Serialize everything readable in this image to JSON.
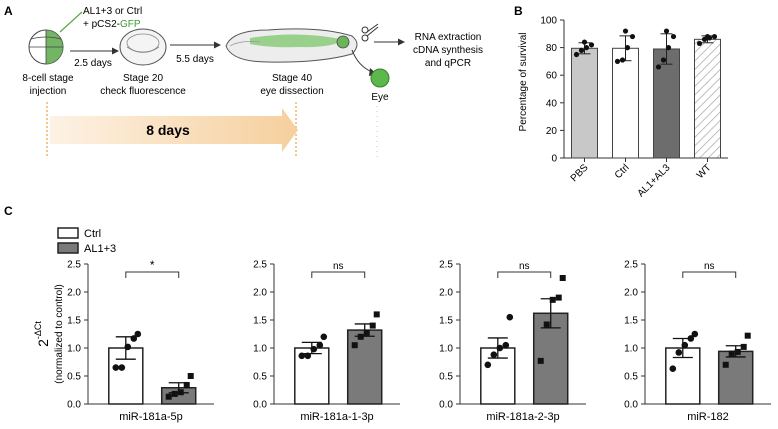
{
  "panel_a": {
    "letter": "A",
    "injection_line1": "AL1+3 or Ctrl",
    "injection_line2_prefix": "+ pCS2-",
    "injection_line2_gfp": "GFP",
    "step1_line1": "8-cell stage",
    "step1_line2": "injection",
    "arrow1_label": "2.5 days",
    "step2_line1": "Stage 20",
    "step2_line2": "check fluorescence",
    "arrow2_label": "5.5 days",
    "step3_line1": "Stage 40",
    "step3_line2": "eye dissection",
    "eye_label": "Eye",
    "final_line1": "RNA extraction",
    "final_line2": "cDNA synthesis",
    "final_line3": "and qPCR",
    "timeline_label": "8 days",
    "colors": {
      "gfp_green": "#5aa84a",
      "timeline_fill": "#f8d9b4",
      "timeline_line": "#e8a040"
    }
  },
  "chart_data": [
    {
      "panel": "B",
      "type": "bar",
      "ylabel": "Percentage of survival",
      "ylim": [
        0,
        100
      ],
      "yticks": [
        0,
        20,
        40,
        60,
        80,
        100
      ],
      "categories": [
        "PBS",
        "Ctrl",
        "AL1+AL3",
        "WT"
      ],
      "values": [
        79.5,
        79.5,
        79,
        86
      ],
      "errors": [
        4,
        9,
        11,
        2.5
      ],
      "points": [
        [
          75,
          78,
          80,
          82,
          84
        ],
        [
          70,
          71,
          80,
          88,
          92
        ],
        [
          66,
          71,
          80,
          88,
          92
        ],
        [
          83,
          86,
          87,
          88,
          88
        ]
      ],
      "fills": [
        "#c8c8c8",
        "#ffffff",
        "#6d6d6d",
        "hatch"
      ]
    },
    {
      "panel": "C",
      "type": "bar",
      "legend": [
        "Ctrl",
        "AL1+3"
      ],
      "ylabel_main": "2",
      "ylabel_sup": "-ΔCt",
      "ylabel_sub": "(normalized to control)",
      "ylim": [
        0,
        2.5
      ],
      "yticks": [
        "0.0",
        "0.5",
        "1.0",
        "1.5",
        "2.0",
        "2.5"
      ],
      "series_colors": [
        "#ffffff",
        "#7a7a7a"
      ],
      "subplots": [
        {
          "title": "miR-181a-5p",
          "sig": "*",
          "ctrl": 1.0,
          "ctrl_err": 0.2,
          "al": 0.29,
          "al_err": 0.09,
          "ctrl_pts": [
            0.65,
            0.65,
            1.02,
            1.17,
            1.25
          ],
          "al_pts": [
            0.13,
            0.18,
            0.21,
            0.34,
            0.5
          ]
        },
        {
          "title": "miR-181a-1-3p",
          "sig": "ns",
          "ctrl": 1.0,
          "ctrl_err": 0.1,
          "al": 1.32,
          "al_err": 0.11,
          "ctrl_pts": [
            0.86,
            0.86,
            0.98,
            1.05,
            1.2
          ],
          "al_pts": [
            1.05,
            1.2,
            1.27,
            1.4,
            1.6
          ]
        },
        {
          "title": "miR-181a-2-3p",
          "sig": "ns",
          "ctrl": 1.0,
          "ctrl_err": 0.18,
          "al": 1.62,
          "al_err": 0.26,
          "ctrl_pts": [
            0.7,
            0.88,
            1.0,
            1.05,
            1.55
          ],
          "al_pts": [
            0.77,
            1.42,
            1.86,
            1.9,
            2.25
          ]
        },
        {
          "title": "miR-182",
          "sig": "ns",
          "ctrl": 1.0,
          "ctrl_err": 0.17,
          "al": 0.94,
          "al_err": 0.1,
          "ctrl_pts": [
            0.63,
            0.92,
            1.05,
            1.17,
            1.25
          ],
          "al_pts": [
            0.7,
            0.9,
            0.93,
            1.02,
            1.22
          ]
        }
      ]
    }
  ]
}
